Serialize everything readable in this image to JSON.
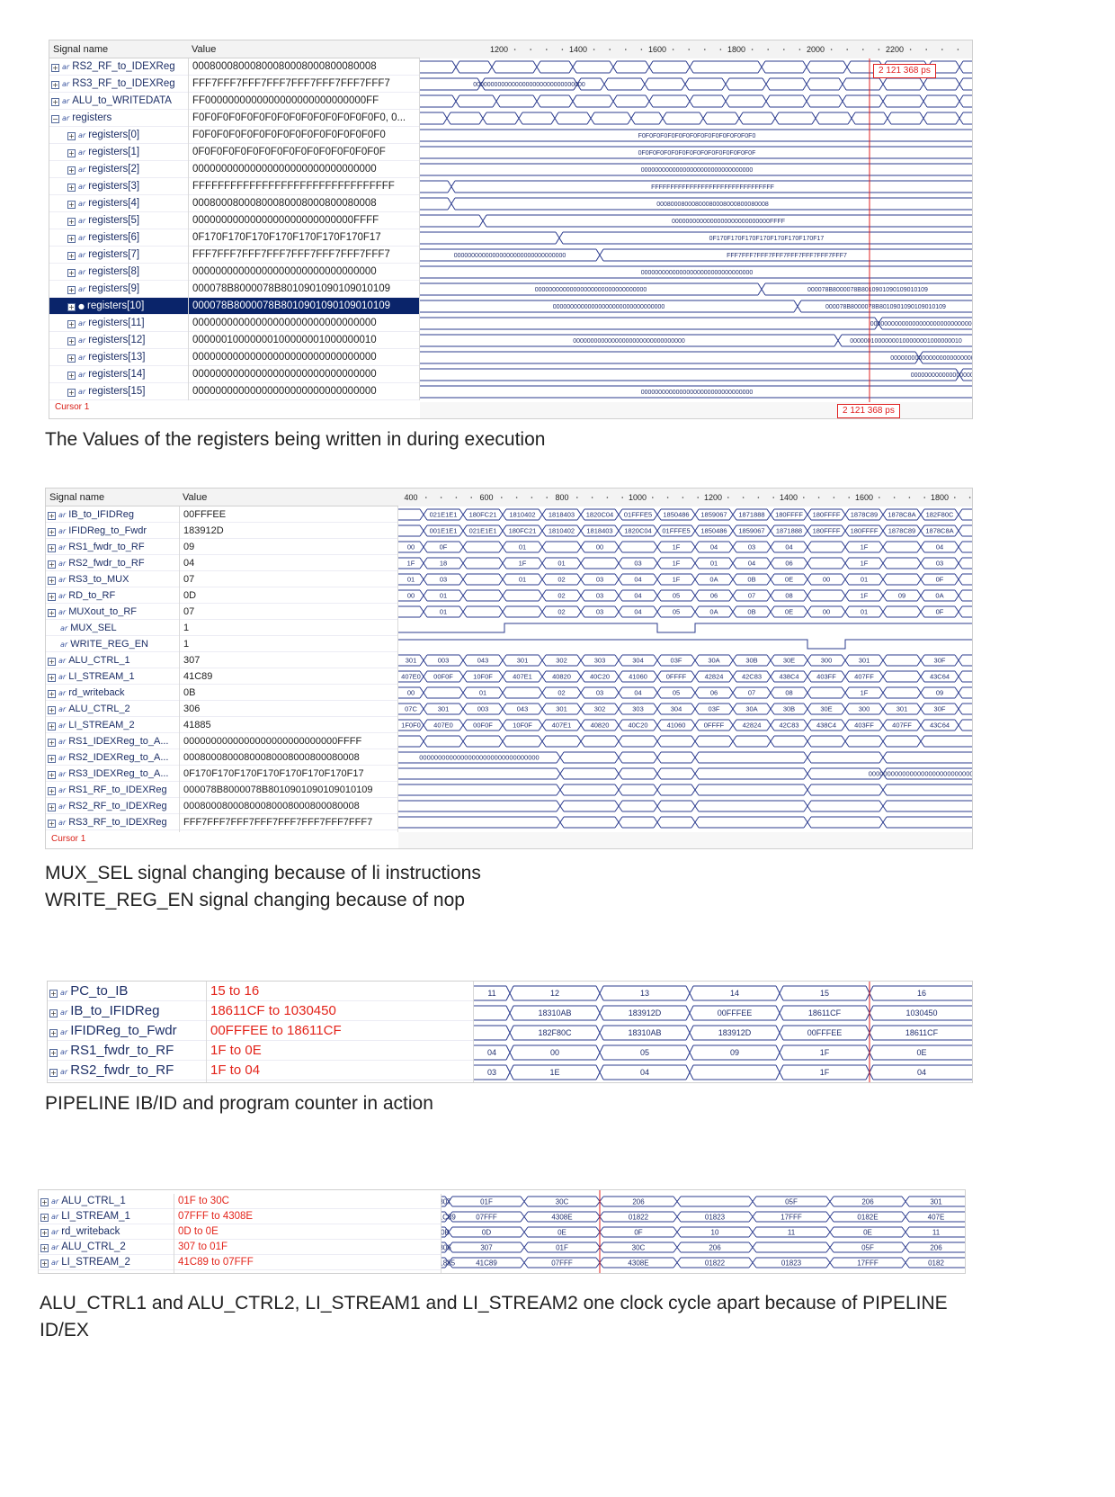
{
  "panel1": {
    "header": {
      "signal": "Signal name",
      "value": "Value"
    },
    "ticks": [
      "1200",
      "1400",
      "1600",
      "1800",
      "2000",
      "2200"
    ],
    "rows": [
      {
        "name": "RS2_RF_to_IDEXReg",
        "value": "00080008000800080008000800080008",
        "indent": 0,
        "expand": "+"
      },
      {
        "name": "RS3_RF_to_IDEXReg",
        "value": "FFF7FFF7FFF7FFF7FFF7FFF7FFF7FFF7",
        "indent": 0,
        "expand": "+"
      },
      {
        "name": "ALU_to_WRITEDATA",
        "value": "FF0000000000000000000000000000FF",
        "indent": 0,
        "expand": "+"
      },
      {
        "name": "registers",
        "value": "F0F0F0F0F0F0F0F0F0F0F0F0F0F0F0F0, 0...",
        "indent": 0,
        "expand": "−"
      },
      {
        "name": "registers[0]",
        "value": "F0F0F0F0F0F0F0F0F0F0F0F0F0F0F0F0",
        "indent": 1,
        "expand": "+"
      },
      {
        "name": "registers[1]",
        "value": "0F0F0F0F0F0F0F0F0F0F0F0F0F0F0F0F",
        "indent": 1,
        "expand": "+"
      },
      {
        "name": "registers[2]",
        "value": "00000000000000000000000000000000",
        "indent": 1,
        "expand": "+"
      },
      {
        "name": "registers[3]",
        "value": "FFFFFFFFFFFFFFFFFFFFFFFFFFFFFFFF",
        "indent": 1,
        "expand": "+"
      },
      {
        "name": "registers[4]",
        "value": "00080008000800080008000800080008",
        "indent": 1,
        "expand": "+"
      },
      {
        "name": "registers[5]",
        "value": "0000000000000000000000000000FFFF",
        "indent": 1,
        "expand": "+"
      },
      {
        "name": "registers[6]",
        "value": "0F170F170F170F170F170F170F170F17",
        "indent": 1,
        "expand": "+"
      },
      {
        "name": "registers[7]",
        "value": "FFF7FFF7FFF7FFF7FFF7FFF7FFF7FFF7",
        "indent": 1,
        "expand": "+"
      },
      {
        "name": "registers[8]",
        "value": "00000000000000000000000000000000",
        "indent": 1,
        "expand": "+"
      },
      {
        "name": "registers[9]",
        "value": "000078B8000078B8010901090109010109",
        "indent": 1,
        "expand": "+"
      },
      {
        "name": "registers[10]",
        "value": "000078B8000078B8010901090109010109",
        "indent": 1,
        "expand": "+",
        "selected": true
      },
      {
        "name": "registers[11]",
        "value": "00000000000000000000000000000000",
        "indent": 1,
        "expand": "+"
      },
      {
        "name": "registers[12]",
        "value": "00000010000000100000001000000010",
        "indent": 1,
        "expand": "+"
      },
      {
        "name": "registers[13]",
        "value": "00000000000000000000000000000000",
        "indent": 1,
        "expand": "+"
      },
      {
        "name": "registers[14]",
        "value": "00000000000000000000000000000000",
        "indent": 1,
        "expand": "+"
      },
      {
        "name": "registers[15]",
        "value": "00000000000000000000000000000000",
        "indent": 1,
        "expand": "+"
      }
    ],
    "labels": [
      {
        "row": 1,
        "text": "00000000000000000000000000000000"
      },
      {
        "row": 4,
        "text": "F0F0F0F0F0F0F0F0F0F0F0F0F0F0F0F0"
      },
      {
        "row": 5,
        "text": "0F0F0F0F0F0F0F0F0F0F0F0F0F0F0F0F"
      },
      {
        "row": 6,
        "text": "00000000000000000000000000000000"
      },
      {
        "row": 7,
        "text": "FFFFFFFFFFFFFFFFFFFFFFFFFFFFFFFF"
      },
      {
        "row": 8,
        "text": "00080008000800080008000800080008"
      },
      {
        "row": 9,
        "text": "0000000000000000000000000000FFFF"
      },
      {
        "row": 10,
        "text": "0F170F170F170F170F170F170F170F17"
      },
      {
        "row": 11,
        "text": "00000000000000000000000000000000"
      },
      {
        "row": 11,
        "text": "FFF7FFF7FFF7FFF7FFF7FFF7FFF7FFF7"
      },
      {
        "row": 12,
        "text": "00000000000000000000000000000000"
      },
      {
        "row": 13,
        "text": "00000000000000000000000000000000"
      },
      {
        "row": 13,
        "text": "000078B8000078B8010901090109010109"
      },
      {
        "row": 14,
        "text": "00000000000000000000000000000000"
      },
      {
        "row": 14,
        "text": "000078B8000078B8010901090109010109"
      },
      {
        "row": 15,
        "text": "00000000000000000000000000000000"
      },
      {
        "row": 16,
        "text": "00000000000000000000000000000000"
      },
      {
        "row": 16,
        "text": "00000010000000100000001000000010"
      },
      {
        "row": 17,
        "text": "00000000000000000000000000000000"
      },
      {
        "row": 18,
        "text": "00000000000000000000000000000000"
      },
      {
        "row": 19,
        "text": "00000000000000000000000000000000"
      }
    ],
    "cursor_label": "Cursor 1",
    "cursor_time": "2 121 368 ps"
  },
  "caption1": "The Values of the registers being written in during execution",
  "panel2": {
    "header": {
      "signal": "Signal name",
      "value": "Value"
    },
    "ticks": [
      "400",
      "600",
      "800",
      "1000",
      "1200",
      "1400",
      "1600",
      "1800"
    ],
    "rows": [
      {
        "name": "IB_to_IFIDReg",
        "value": "00FFFEE",
        "expand": "+",
        "bus": true,
        "segs": [
          "",
          "021E1E1",
          "180FC21",
          "1810402",
          "1818403",
          "1820C04",
          "01FFFE5",
          "1850486",
          "1859067",
          "1871888",
          "180FFFF",
          "180FFFF",
          "1878C89",
          "1878C8A",
          "182F80C",
          ""
        ]
      },
      {
        "name": "IFIDReg_to_Fwdr",
        "value": "183912D",
        "expand": "+",
        "bus": true,
        "segs": [
          "",
          "001E1E1",
          "021E1E1",
          "180FC21",
          "1810402",
          "1818403",
          "1820C04",
          "01FFFE5",
          "1850486",
          "1859067",
          "1871888",
          "180FFFF",
          "180FFFF",
          "1878C89",
          "1878C8A",
          ""
        ]
      },
      {
        "name": "RS1_fwdr_to_RF",
        "value": "09",
        "expand": "+",
        "bus": true,
        "segs": [
          "00",
          "0F",
          "",
          "01",
          "",
          "00",
          "",
          "1F",
          "04",
          "03",
          "04",
          "",
          "1F",
          "",
          "04",
          ""
        ]
      },
      {
        "name": "RS2_fwdr_to_RF",
        "value": "04",
        "expand": "+",
        "bus": true,
        "segs": [
          "1F",
          "18",
          "",
          "1F",
          "01",
          "",
          "03",
          "1F",
          "01",
          "04",
          "06",
          "",
          "1F",
          "",
          "03",
          ""
        ]
      },
      {
        "name": "RS3_to_MUX",
        "value": "07",
        "expand": "+",
        "bus": true,
        "segs": [
          "01",
          "03",
          "",
          "01",
          "02",
          "03",
          "04",
          "1F",
          "0A",
          "0B",
          "0E",
          "00",
          "01",
          "",
          "0F",
          ""
        ]
      },
      {
        "name": "RD_to_RF",
        "value": "0D",
        "expand": "+",
        "bus": true,
        "segs": [
          "00",
          "01",
          "",
          "",
          "02",
          "03",
          "04",
          "05",
          "06",
          "07",
          "08",
          "",
          "1F",
          "09",
          "0A",
          ""
        ]
      },
      {
        "name": "MUXout_to_RF",
        "value": "07",
        "expand": "+",
        "bus": true,
        "segs": [
          "",
          "01",
          "",
          "",
          "02",
          "03",
          "04",
          "05",
          "0A",
          "0B",
          "0E",
          "00",
          "01",
          "",
          "0F",
          ""
        ]
      },
      {
        "name": "MUX_SEL",
        "value": "1",
        "expand": "",
        "bus": false
      },
      {
        "name": "WRITE_REG_EN",
        "value": "1",
        "expand": "",
        "bus": false
      },
      {
        "name": "ALU_CTRL_1",
        "value": "307",
        "expand": "+",
        "bus": true,
        "segs": [
          "301",
          "003",
          "043",
          "301",
          "302",
          "303",
          "304",
          "03F",
          "30A",
          "30B",
          "30E",
          "300",
          "301",
          "",
          "30F",
          ""
        ]
      },
      {
        "name": "LI_STREAM_1",
        "value": "41C89",
        "expand": "+",
        "bus": true,
        "segs": [
          "407E0",
          "00F0F",
          "10F0F",
          "407E1",
          "40820",
          "40C20",
          "41060",
          "0FFFF",
          "42824",
          "42C83",
          "438C4",
          "403FF",
          "407FF",
          "",
          "43C64",
          ""
        ]
      },
      {
        "name": "rd_writeback",
        "value": "0B",
        "expand": "+",
        "bus": true,
        "segs": [
          "00",
          "",
          "01",
          "",
          "02",
          "03",
          "04",
          "05",
          "06",
          "07",
          "08",
          "",
          "1F",
          "",
          "09",
          ""
        ]
      },
      {
        "name": "ALU_CTRL_2",
        "value": "306",
        "expand": "+",
        "bus": true,
        "segs": [
          "07C",
          "301",
          "003",
          "043",
          "301",
          "302",
          "303",
          "304",
          "03F",
          "30A",
          "30B",
          "30E",
          "300",
          "301",
          "30F",
          ""
        ]
      },
      {
        "name": "LI_STREAM_2",
        "value": "41885",
        "expand": "+",
        "bus": true,
        "segs": [
          "1F0F0",
          "407E0",
          "00F0F",
          "10F0F",
          "407E1",
          "40820",
          "40C20",
          "41060",
          "0FFFF",
          "42824",
          "42C83",
          "438C4",
          "403FF",
          "407FF",
          "43C64",
          ""
        ]
      },
      {
        "name": "RS1_IDEXReg_to_A...",
        "value": "0000000000000000000000000000FFFF",
        "expand": "+",
        "bus": true,
        "segs": [
          "",
          "",
          "",
          "",
          "",
          "",
          "",
          "",
          "",
          "",
          "",
          "",
          "",
          "",
          "",
          ""
        ]
      },
      {
        "name": "RS2_IDEXReg_to_A...",
        "value": "00080008000800080008000800080008",
        "expand": "+",
        "bus": true,
        "segs": [
          "00000000000000000000000000000000",
          "",
          "",
          "",
          "",
          "",
          "",
          "",
          "",
          "",
          "",
          "",
          "",
          "",
          "",
          ""
        ]
      },
      {
        "name": "RS3_IDEXReg_to_A...",
        "value": "0F170F170F170F170F170F170F170F17",
        "expand": "+",
        "bus": true,
        "segs": [
          "",
          "",
          "",
          "",
          "",
          "",
          "00000000000000000000000000000000",
          "",
          "",
          "",
          "",
          "",
          "",
          "",
          "",
          ""
        ]
      },
      {
        "name": "RS1_RF_to_IDEXReg",
        "value": "000078B8000078B8010901090109010109",
        "expand": "+",
        "bus": true,
        "segs": [
          "",
          "",
          "",
          "",
          "",
          "",
          "",
          "",
          "",
          "",
          "",
          "",
          "",
          "",
          "",
          ""
        ]
      },
      {
        "name": "RS2_RF_to_IDEXReg",
        "value": "00080008000800080008000800080008",
        "expand": "+",
        "bus": true,
        "segs": [
          "",
          "",
          "",
          "",
          "",
          "",
          "",
          "",
          "",
          "",
          "",
          "",
          "",
          "",
          "",
          ""
        ]
      },
      {
        "name": "RS3_RF_to_IDEXReg",
        "value": "FFF7FFF7FFF7FFF7FFF7FFF7FFF7FFF7",
        "expand": "+",
        "bus": true,
        "segs": [
          "",
          "",
          "",
          "",
          "",
          "",
          "",
          "00000000000000000000000000000000",
          "",
          "",
          "",
          "",
          "",
          "",
          "",
          ""
        ]
      }
    ],
    "cursor_label": "Cursor 1"
  },
  "caption2a": "MUX_SEL signal changing because of li instructions",
  "caption2b": "WRITE_REG_EN signal changing because of nop",
  "panel3": {
    "rows": [
      {
        "name": "PC_to_IB",
        "value": "15 to 16",
        "segs": [
          "11",
          "12",
          "13",
          "14",
          "15",
          "16"
        ]
      },
      {
        "name": "IB_to_IFIDReg",
        "value": "18611CF to 1030450",
        "segs": [
          "",
          "18310AB",
          "183912D",
          "00FFFEE",
          "18611CF",
          "1030450"
        ]
      },
      {
        "name": "IFIDReg_to_Fwdr",
        "value": "00FFFEE to 18611CF",
        "segs": [
          "",
          "182F80C",
          "18310AB",
          "183912D",
          "00FFFEE",
          "18611CF"
        ]
      },
      {
        "name": "RS1_fwdr_to_RF",
        "value": "1F to 0E",
        "segs": [
          "04",
          "00",
          "05",
          "09",
          "1F",
          "0E"
        ]
      },
      {
        "name": "RS2_fwdr_to_RF",
        "value": "1F to 04",
        "segs": [
          "03",
          "1E",
          "04",
          "",
          "1F",
          "04"
        ]
      }
    ]
  },
  "caption3": "PIPELINE  IB/ID and program counter in action",
  "panel4": {
    "rows": [
      {
        "name": "ALU_CTRL_1",
        "value": "01F to 30C",
        "segs": [
          "307",
          "01F",
          "30C",
          "206",
          "",
          "05F",
          "206",
          "301"
        ]
      },
      {
        "name": "LI_STREAM_1",
        "value": "07FFF to 4308E",
        "segs": [
          "41C89",
          "07FFF",
          "4308E",
          "01822",
          "01823",
          "17FFF",
          "0182E",
          "407E"
        ]
      },
      {
        "name": "rd_writeback",
        "value": "0D to 0E",
        "segs": [
          "0B",
          "0D",
          "0E",
          "0F",
          "10",
          "11",
          "0E",
          "11"
        ]
      },
      {
        "name": "ALU_CTRL_2",
        "value": "307 to 01F",
        "segs": [
          "306",
          "307",
          "01F",
          "30C",
          "206",
          "",
          "05F",
          "206"
        ]
      },
      {
        "name": "LI_STREAM_2",
        "value": "41C89 to 07FFF",
        "segs": [
          "41885",
          "41C89",
          "07FFF",
          "4308E",
          "01822",
          "01823",
          "17FFF",
          "0182"
        ]
      }
    ]
  },
  "caption4": "ALU_CTRL1 and ALU_CTRL2, LI_STREAM1 and LI_STREAM2 one clock cycle apart because of PIPELINE ID/EX"
}
